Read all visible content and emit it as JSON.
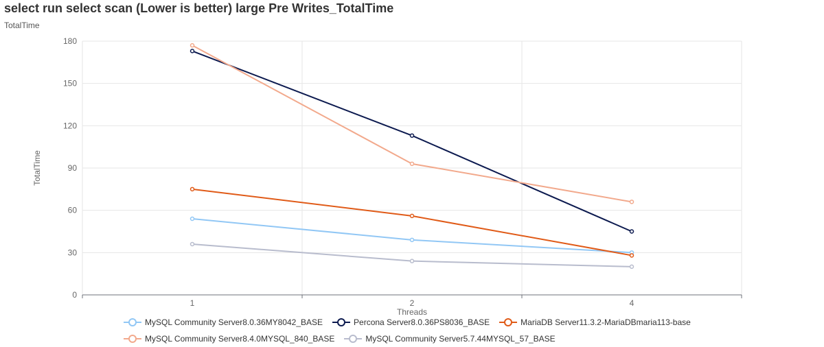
{
  "chart_data": {
    "type": "line",
    "title": "select run select scan (Lower is better)  large Pre Writes_TotalTime",
    "subtitle": "TotalTime",
    "xlabel": "Threads",
    "ylabel": "TotalTime",
    "categories": [
      "1",
      "2",
      "4"
    ],
    "ylim": [
      0,
      180
    ],
    "yticks": [
      0,
      30,
      60,
      90,
      120,
      150,
      180
    ],
    "grid": true,
    "legend_position": "bottom",
    "series": [
      {
        "name": "MySQL Community Server8.0.36MY8042_BASE",
        "color": "#91c7f5",
        "values": [
          54,
          39,
          30
        ]
      },
      {
        "name": "Percona Server8.0.36PS8036_BASE",
        "color": "#0c1a4f",
        "values": [
          173,
          113,
          45
        ]
      },
      {
        "name": "MariaDB Server11.3.2-MariaDBmaria113-base",
        "color": "#e05a17",
        "values": [
          75,
          56,
          28
        ]
      },
      {
        "name": "MySQL Community Server8.4.0MYSQL_840_BASE",
        "color": "#f2a98c",
        "values": [
          177,
          93,
          66
        ]
      },
      {
        "name": "MySQL Community Server5.7.44MYSQL_57_BASE",
        "color": "#b8bccd",
        "values": [
          36,
          24,
          20
        ]
      }
    ]
  }
}
